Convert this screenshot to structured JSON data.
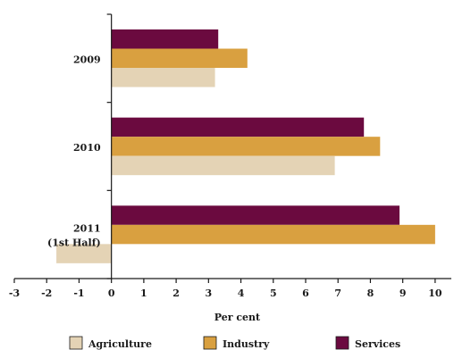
{
  "chart_data": {
    "type": "bar",
    "orientation": "horizontal",
    "categories": [
      {
        "lines": [
          "2009"
        ]
      },
      {
        "lines": [
          "2010"
        ]
      },
      {
        "lines": [
          "2011",
          "(1st Half)"
        ]
      }
    ],
    "series": [
      {
        "name": "Services",
        "color": "#6b0a3f",
        "values": [
          3.3,
          7.8,
          8.9
        ]
      },
      {
        "name": "Industry",
        "color": "#d9a040",
        "values": [
          4.2,
          8.3,
          10.0
        ]
      },
      {
        "name": "Agriculture",
        "color": "#e4d3b5",
        "values": [
          3.2,
          6.9,
          -1.7
        ]
      }
    ],
    "legend_order": [
      "Agriculture",
      "Industry",
      "Services"
    ],
    "legend_position": "bottom",
    "xlabel": "Per cent",
    "xlim": [
      -3,
      10.5
    ],
    "xticks": [
      -3,
      -2,
      -1,
      0,
      1,
      2,
      3,
      4,
      5,
      6,
      7,
      8,
      9,
      10
    ],
    "grid": false
  }
}
